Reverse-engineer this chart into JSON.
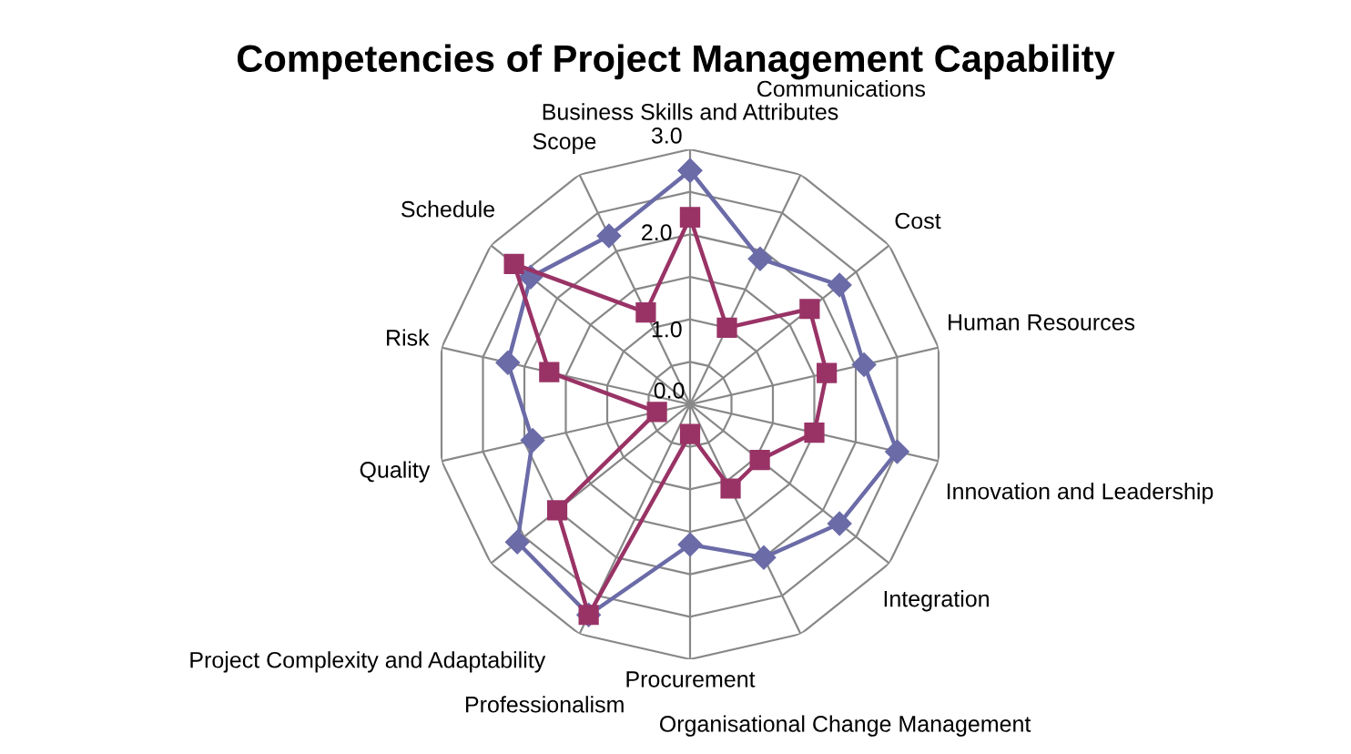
{
  "chart_data": {
    "type": "radar",
    "title": "Competencies of Project Management Capability",
    "categories": [
      "Business Skills and Attributes",
      "Communications",
      "Cost",
      "Human Resources",
      "Innovation and Leadership",
      "Integration",
      "Organisational Change Management",
      "Procurement",
      "Professionalism",
      "Project Complexity and Adaptability",
      "Quality",
      "Risk",
      "Schedule",
      "Scope"
    ],
    "series": [
      {
        "color": "#6b6ba8",
        "marker": "diamond",
        "values": [
          2.75,
          1.9,
          2.25,
          2.1,
          2.5,
          2.25,
          2.0,
          1.65,
          2.75,
          2.6,
          1.9,
          2.2,
          2.4,
          2.2
        ]
      },
      {
        "color": "#993366",
        "marker": "square",
        "values": [
          2.2,
          1.0,
          1.8,
          1.65,
          1.5,
          1.05,
          1.1,
          0.35,
          2.75,
          2.0,
          0.4,
          1.7,
          2.65,
          1.2
        ]
      }
    ],
    "ylim": [
      0,
      3
    ],
    "yticks": [
      {
        "value": 0,
        "label": "0.0"
      },
      {
        "value": 1,
        "label": "1.0"
      },
      {
        "value": 2,
        "label": "2.0"
      },
      {
        "value": 3,
        "label": "3.0"
      }
    ],
    "grid": true
  }
}
